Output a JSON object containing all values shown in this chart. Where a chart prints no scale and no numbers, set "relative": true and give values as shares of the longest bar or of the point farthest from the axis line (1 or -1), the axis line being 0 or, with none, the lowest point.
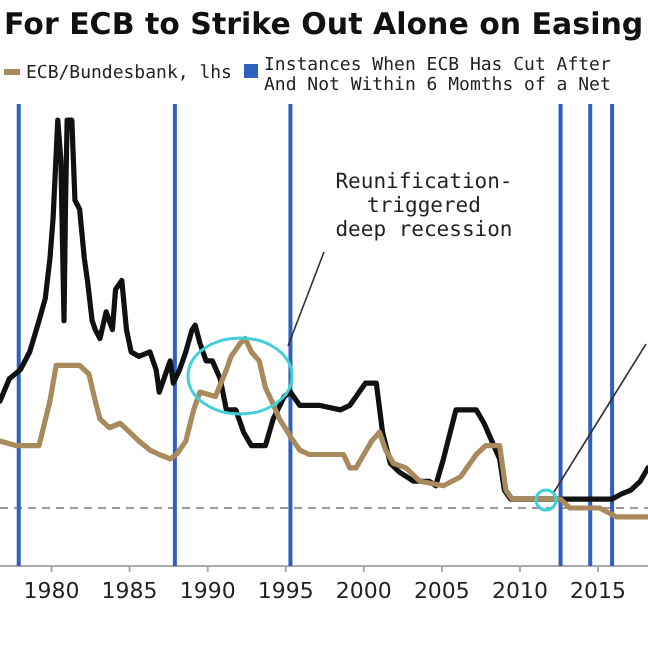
{
  "chart_data": {
    "type": "line",
    "title": "For ECB to Strike Out Alone on Easing",
    "relative": true,
    "xlim": [
      1976.7,
      2018.2
    ],
    "xticks": [
      1980,
      1985,
      1990,
      1995,
      2000,
      2005,
      2010,
      2015
    ],
    "legend": "top",
    "line_style": "solid",
    "marker": "none",
    "series": [
      {
        "color": "#111111",
        "x": [
          1976.7,
          1977.3,
          1978.0,
          1978.6,
          1979.2,
          1979.6,
          1979.9,
          1980.1,
          1980.4,
          1980.6,
          1980.8,
          1980.9,
          1981.0,
          1981.3,
          1981.5,
          1981.8,
          1982.1,
          1982.3,
          1982.6,
          1982.8,
          1983.1,
          1983.5,
          1983.9,
          1984.1,
          1984.5,
          1984.8,
          1985.1,
          1985.6,
          1986.3,
          1986.7,
          1986.9,
          1987.2,
          1987.6,
          1987.8,
          1988.2,
          1988.6,
          1989.0,
          1989.2,
          1989.5,
          1989.9,
          1990.3,
          1990.8,
          1991.2,
          1991.8,
          1992.3,
          1992.8,
          1993.7,
          1994.2,
          1994.9,
          1995.3,
          1995.9,
          1997.2,
          1998.5,
          1999.1,
          2000.1,
          2000.8,
          2001.2,
          2001.7,
          2002.3,
          2003.2,
          2004.2,
          2004.6,
          2005.1,
          2005.9,
          2007.2,
          2007.7,
          2008.2,
          2008.7,
          2009.0,
          2009.4,
          2015.9,
          2016.4,
          2017.1,
          2017.7,
          2018.2
        ],
        "values": [
          0.37,
          0.42,
          0.44,
          0.48,
          0.55,
          0.6,
          0.69,
          0.78,
          1.0,
          0.91,
          0.55,
          0.82,
          1.0,
          1.0,
          0.82,
          0.8,
          0.69,
          0.64,
          0.55,
          0.53,
          0.51,
          0.57,
          0.53,
          0.62,
          0.64,
          0.53,
          0.48,
          0.47,
          0.48,
          0.44,
          0.39,
          0.42,
          0.46,
          0.41,
          0.44,
          0.48,
          0.53,
          0.54,
          0.5,
          0.46,
          0.46,
          0.42,
          0.35,
          0.35,
          0.3,
          0.27,
          0.27,
          0.33,
          0.38,
          0.39,
          0.36,
          0.36,
          0.35,
          0.36,
          0.41,
          0.41,
          0.3,
          0.23,
          0.21,
          0.19,
          0.19,
          0.18,
          0.24,
          0.35,
          0.35,
          0.32,
          0.28,
          0.24,
          0.17,
          0.15,
          0.15,
          0.16,
          0.17,
          0.19,
          0.22
        ]
      },
      {
        "name": "ECB/Bundesbank, lhs",
        "color": "#a88a5c",
        "x": [
          1976.7,
          1977.7,
          1979.2,
          1979.9,
          1980.3,
          1981.8,
          1982.4,
          1982.8,
          1983.1,
          1983.7,
          1984.4,
          1985.0,
          1985.6,
          1986.3,
          1986.9,
          1987.6,
          1988.0,
          1988.6,
          1989.1,
          1989.5,
          1990.5,
          1991.2,
          1991.5,
          1992.1,
          1992.4,
          1992.8,
          1993.3,
          1993.7,
          1994.1,
          1994.6,
          1995.3,
          1995.9,
          1996.5,
          1998.7,
          1999.1,
          1999.5,
          2000.0,
          2000.5,
          2001.0,
          2001.4,
          2001.9,
          2002.7,
          2003.6,
          2005.1,
          2006.2,
          2007.2,
          2007.8,
          2008.7,
          2009.1,
          2009.5,
          2012.6,
          2013.2,
          2015.1,
          2016.2,
          2018.2
        ],
        "values": [
          0.28,
          0.27,
          0.27,
          0.37,
          0.45,
          0.45,
          0.43,
          0.37,
          0.33,
          0.31,
          0.32,
          0.3,
          0.28,
          0.26,
          0.25,
          0.24,
          0.25,
          0.28,
          0.35,
          0.39,
          0.38,
          0.44,
          0.47,
          0.5,
          0.51,
          0.48,
          0.46,
          0.4,
          0.37,
          0.33,
          0.29,
          0.26,
          0.25,
          0.25,
          0.22,
          0.22,
          0.25,
          0.28,
          0.3,
          0.26,
          0.23,
          0.22,
          0.19,
          0.18,
          0.2,
          0.25,
          0.27,
          0.27,
          0.17,
          0.15,
          0.15,
          0.13,
          0.13,
          0.11,
          0.11
        ]
      }
    ],
    "ref_lines": [
      {
        "axis": "x",
        "value": 1977.9,
        "color": "#2f5fbf"
      },
      {
        "axis": "x",
        "value": 1987.9,
        "color": "#2f5fbf"
      },
      {
        "axis": "x",
        "value": 1995.3,
        "color": "#2f5fbf"
      },
      {
        "axis": "x",
        "value": 2012.6,
        "color": "#2f5fbf"
      },
      {
        "axis": "x",
        "value": 2014.5,
        "color": "#2f5fbf"
      },
      {
        "axis": "x",
        "value": 2015.9,
        "color": "#2f5fbf"
      },
      {
        "axis": "y",
        "value": 0.13,
        "color": "#999999",
        "line_style": "dashed"
      }
    ],
    "annotations": [
      "Reunification-\ntriggered\ndeep recession",
      "Instances When ECB Has Cut After\nAnd Not Within 6 Momths of a Net"
    ]
  }
}
